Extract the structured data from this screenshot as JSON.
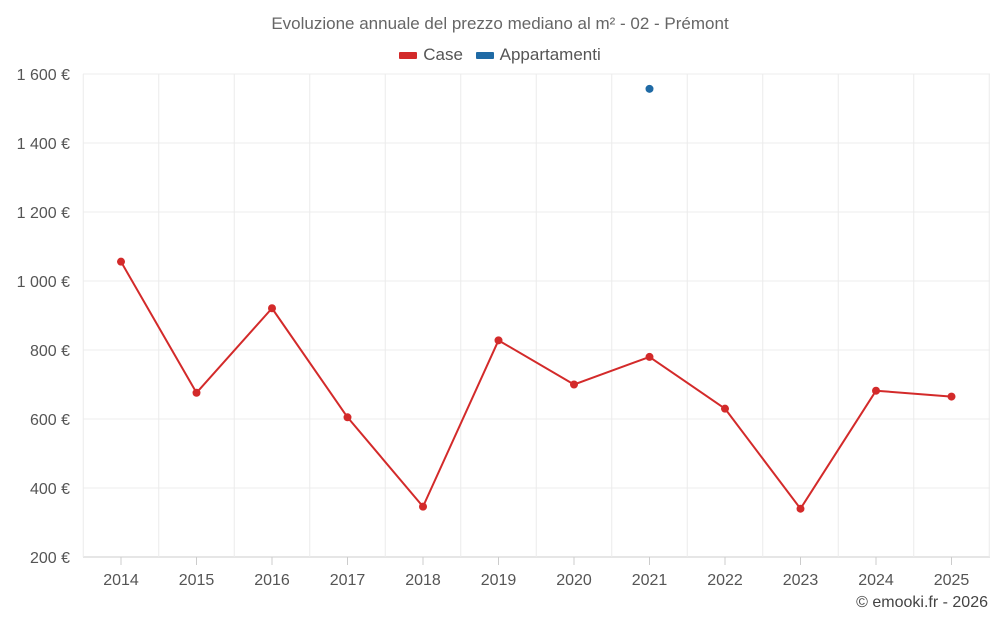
{
  "chart_data": {
    "type": "line",
    "title": "Evoluzione annuale del prezzo mediano al m² - 02 - Prémont",
    "x": [
      "2014",
      "2015",
      "2016",
      "2017",
      "2018",
      "2019",
      "2020",
      "2021",
      "2022",
      "2023",
      "2024",
      "2025"
    ],
    "y_ticks": [
      "200 €",
      "400 €",
      "600 €",
      "800 €",
      "1 000 €",
      "1 200 €",
      "1 400 €",
      "1 600 €"
    ],
    "ylim": [
      200,
      1600
    ],
    "grid": true,
    "legend_position": "top-center",
    "series": [
      {
        "name": "Case",
        "color": "#d32a2a",
        "values": [
          1056,
          676,
          921,
          605,
          346,
          828,
          700,
          780,
          630,
          340,
          682,
          665
        ]
      },
      {
        "name": "Appartamenti",
        "color": "#1f6aa5",
        "values": [
          null,
          null,
          null,
          null,
          null,
          null,
          null,
          1557,
          null,
          null,
          null,
          null
        ]
      }
    ]
  },
  "credit": "© emooki.fr - 2026"
}
